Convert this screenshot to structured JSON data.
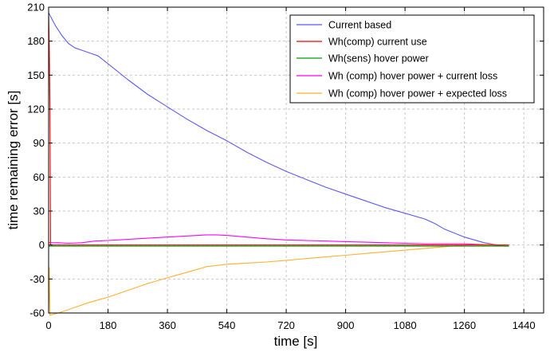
{
  "chart_data": {
    "type": "line",
    "title": "",
    "xlabel": "time [s]",
    "ylabel": "time remaining error [s]",
    "xlim": [
      0,
      1500
    ],
    "ylim": [
      -60,
      210
    ],
    "xticks": [
      0,
      180,
      360,
      540,
      720,
      900,
      1080,
      1260,
      1440
    ],
    "yticks": [
      -60,
      -30,
      0,
      30,
      60,
      90,
      120,
      150,
      180,
      210
    ],
    "grid": true,
    "legend_position": "top-right",
    "series": [
      {
        "name": "Current based",
        "color": "#5b5bff",
        "x": [
          0,
          20,
          40,
          60,
          80,
          100,
          120,
          150,
          180,
          240,
          300,
          360,
          420,
          480,
          540,
          600,
          660,
          720,
          780,
          840,
          900,
          960,
          1020,
          1080,
          1140,
          1170,
          1200,
          1260,
          1320,
          1360,
          1380,
          1395
        ],
        "y": [
          205,
          194,
          185,
          178,
          174,
          172,
          170,
          167,
          160,
          146,
          133,
          122,
          111,
          101,
          92,
          82,
          73,
          65,
          58,
          51,
          45,
          39,
          33,
          28,
          23,
          19,
          14,
          7,
          2,
          0,
          -1,
          -1
        ]
      },
      {
        "name": "Wh(comp) current use",
        "color": "#ff0000",
        "x": [
          0,
          2,
          4,
          6,
          60,
          180,
          360,
          540,
          720,
          900,
          1080,
          1260,
          1395
        ],
        "y": [
          205,
          175,
          120,
          0,
          0,
          0,
          0,
          0,
          0,
          0,
          0,
          0,
          0
        ]
      },
      {
        "name": "Wh(sens) hover power",
        "color": "#00a000",
        "x": [
          0,
          180,
          360,
          540,
          720,
          900,
          1080,
          1260,
          1395
        ],
        "y": [
          -1,
          -1,
          -1,
          -1,
          -1,
          -1,
          -1,
          -1,
          -1
        ]
      },
      {
        "name": "Wh (comp) hover power + current loss",
        "color": "#ff00ff",
        "x": [
          0,
          30,
          60,
          100,
          140,
          180,
          240,
          300,
          360,
          420,
          480,
          510,
          540,
          600,
          660,
          720,
          780,
          840,
          900,
          960,
          1020,
          1080,
          1140,
          1200,
          1260,
          1320,
          1380,
          1395
        ],
        "y": [
          2,
          2,
          1.5,
          2,
          3.5,
          4,
          5,
          6,
          7,
          8,
          9,
          9,
          8.5,
          7,
          5.5,
          4.5,
          4,
          3.5,
          3,
          2.5,
          2,
          1.5,
          1,
          1,
          1,
          0.5,
          -0.5,
          -1
        ]
      },
      {
        "name": "Wh (comp) hover power + expected loss",
        "color": "#ffb030",
        "x": [
          0,
          1,
          2,
          4,
          40,
          80,
          120,
          180,
          240,
          300,
          360,
          420,
          480,
          510,
          540,
          600,
          660,
          720,
          780,
          840,
          900,
          960,
          1020,
          1080,
          1140,
          1200,
          1260,
          1320,
          1380,
          1395
        ],
        "y": [
          -55,
          -40,
          -20,
          -62,
          -59,
          -55,
          -51,
          -46,
          -40,
          -34,
          -29,
          -24,
          -19,
          -18,
          -17,
          -16,
          -15,
          -13.5,
          -12,
          -10.5,
          -9,
          -7.5,
          -6,
          -4.5,
          -3,
          -1.5,
          0,
          0.5,
          0,
          -1
        ]
      }
    ]
  }
}
